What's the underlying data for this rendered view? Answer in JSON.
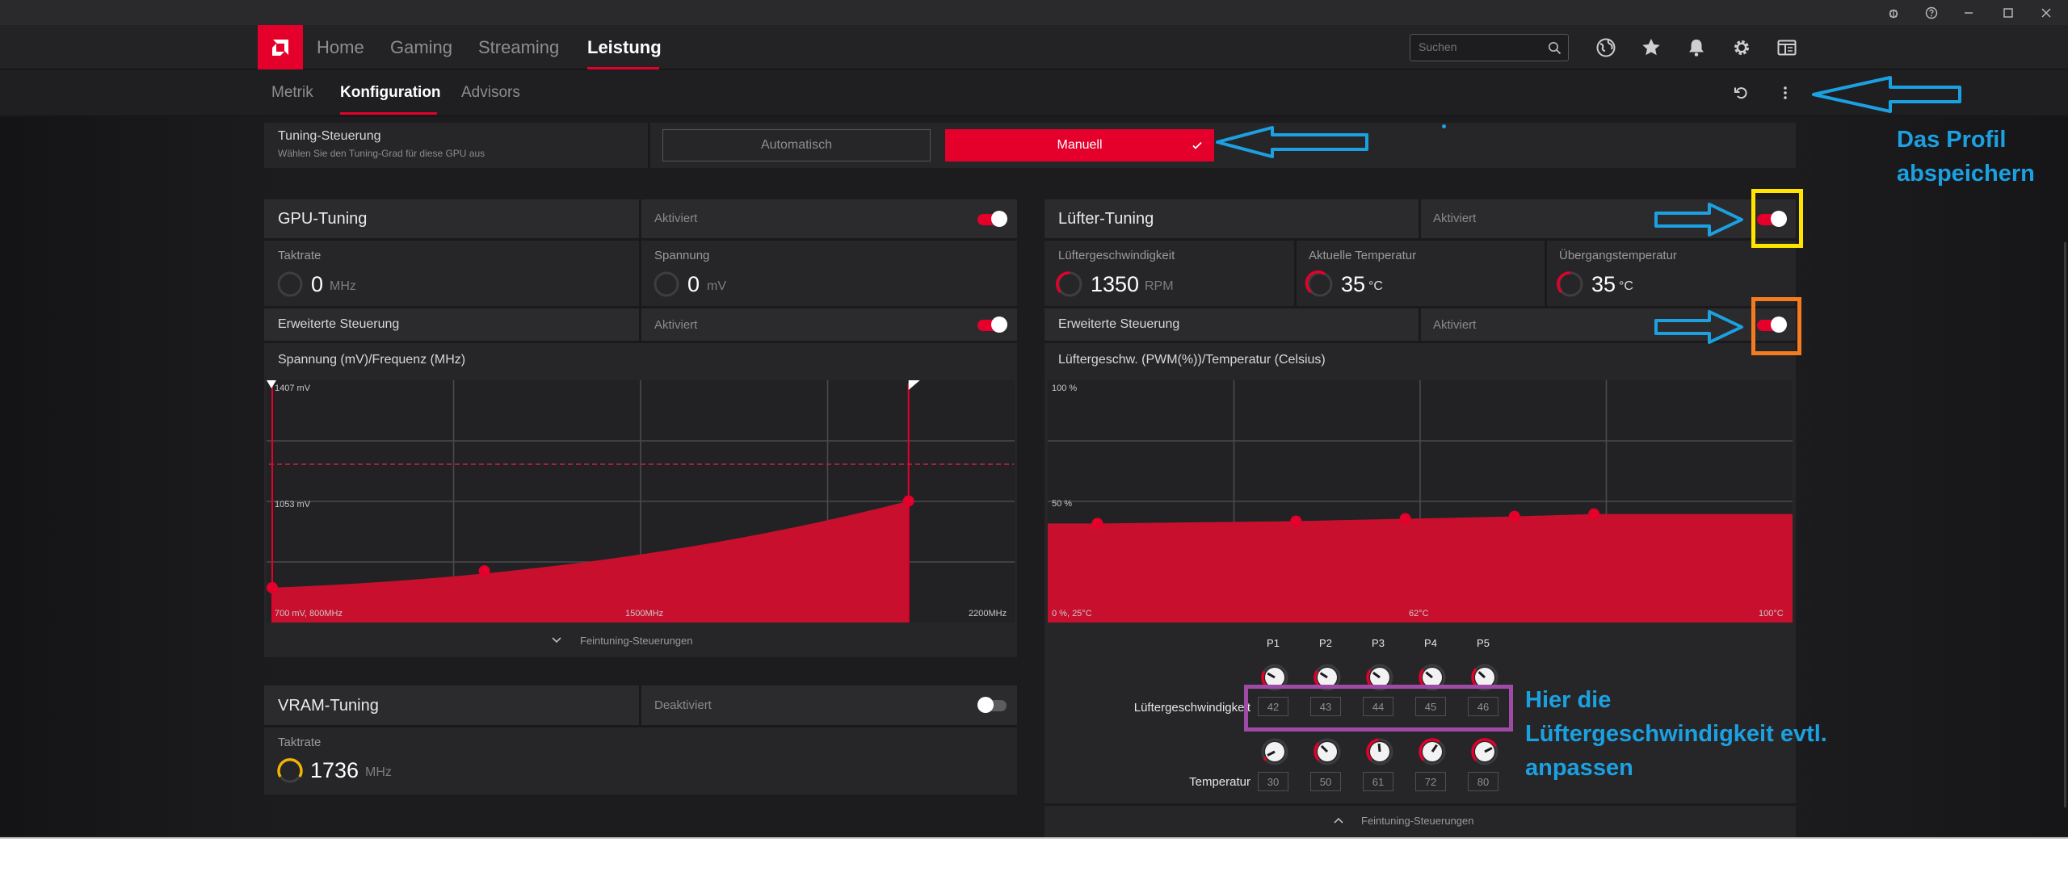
{
  "window": {
    "icons": [
      "bug-icon",
      "help-icon",
      "minimize-icon",
      "maximize-icon",
      "close-icon"
    ]
  },
  "nav": {
    "items": [
      "Home",
      "Gaming",
      "Streaming",
      "Leistung"
    ],
    "active": "Leistung",
    "search_placeholder": "Suchen"
  },
  "subnav": {
    "items": [
      "Metrik",
      "Konfiguration",
      "Advisors"
    ],
    "active": "Konfiguration"
  },
  "tuning": {
    "title": "Tuning-Steuerung",
    "subtitle": "Wählen Sie den Tuning-Grad für diese GPU aus",
    "auto_label": "Automatisch",
    "manual_label": "Manuell"
  },
  "gpu": {
    "title": "GPU-Tuning",
    "status": "Aktiviert",
    "enabled": true,
    "clock_label": "Taktrate",
    "clock_value": "0",
    "clock_unit": "MHz",
    "voltage_label": "Spannung",
    "voltage_value": "0",
    "voltage_unit": "mV",
    "advanced_label": "Erweiterte Steuerung",
    "advanced_status": "Aktiviert",
    "chart_title": "Spannung (mV)/Frequenz (MHz)",
    "fine_label": "Feintuning-Steuerungen"
  },
  "vram": {
    "title": "VRAM-Tuning",
    "status": "Deaktiviert",
    "enabled": false,
    "clock_label": "Taktrate",
    "clock_value": "1736",
    "clock_unit": "MHz"
  },
  "fan": {
    "title": "Lüfter-Tuning",
    "status": "Aktiviert",
    "enabled": true,
    "speed_label": "Lüftergeschwindigkeit",
    "speed_value": "1350",
    "speed_unit": "RPM",
    "temp_label": "Aktuelle Temperatur",
    "temp_value": "35",
    "temp_unit": "°C",
    "junction_label": "Übergangstemperatur",
    "junction_value": "35",
    "junction_unit": "°C",
    "advanced_label": "Erweiterte Steuerung",
    "advanced_status": "Aktiviert",
    "chart_title": "Lüftergeschw. (PWM(%))/Temperatur (Celsius)",
    "points": [
      "P1",
      "P2",
      "P3",
      "P4",
      "P5"
    ],
    "speed_row_label": "Lüftergeschwindigkeit",
    "speeds": [
      "42",
      "43",
      "44",
      "45",
      "46"
    ],
    "temp_row_label": "Temperatur",
    "temps": [
      "30",
      "50",
      "61",
      "72",
      "80"
    ],
    "fine_label": "Feintuning-Steuerungen"
  },
  "annotations": {
    "save_note_1": "Das Profil",
    "save_note_2": "abspeichern",
    "fan_note_1": "Hier die",
    "fan_note_2": "Lüftergeschwindigkeit evtl.",
    "fan_note_3": "anpassen"
  },
  "colors": {
    "accent": "#e4002b",
    "annotation": "#1ba1e2",
    "box_yellow": "#ffe400",
    "box_orange": "#f47b20",
    "box_purple": "#a04aa8",
    "vram_gauge": "#f5b400"
  },
  "chart_data": [
    {
      "type": "area",
      "title": "Spannung (mV)/Frequenz (MHz)",
      "x_tick_labels": [
        "700 mV, 800MHz",
        "1500MHz",
        "2200MHz"
      ],
      "y_tick_labels": [
        "1407 mV",
        "1053 mV"
      ],
      "xlim": [
        800,
        2200
      ],
      "ylim": [
        700,
        1407
      ],
      "series": [
        {
          "x": [
            800,
            1200,
            2000
          ],
          "y": [
            790,
            840,
            1050
          ]
        }
      ],
      "grid": true
    },
    {
      "type": "area",
      "title": "Lüftergeschw. (PWM(%))/Temperatur (Celsius)",
      "x_tick_labels": [
        "0 %, 25°C",
        "62°C",
        "100°C"
      ],
      "y_tick_labels": [
        "100 %",
        "50 %"
      ],
      "xlim": [
        25,
        100
      ],
      "ylim": [
        0,
        100
      ],
      "series": [
        {
          "x": [
            30,
            50,
            61,
            72,
            80
          ],
          "y": [
            42,
            43,
            44,
            45,
            46
          ]
        }
      ],
      "grid": true
    }
  ]
}
